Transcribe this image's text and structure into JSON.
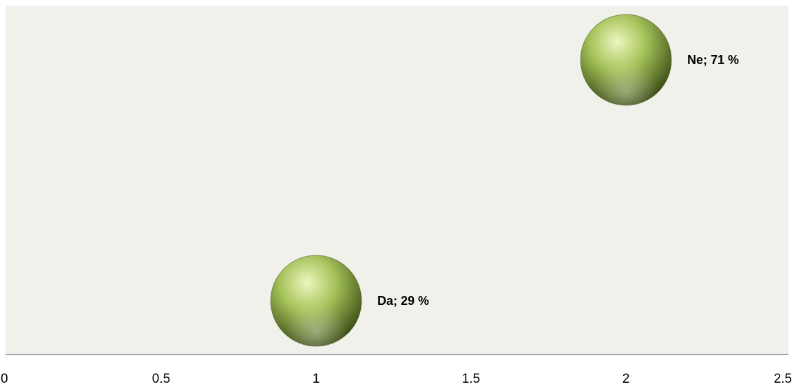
{
  "chart_data": {
    "type": "scatter",
    "title": "",
    "xlabel": "",
    "ylabel": "",
    "xlim": [
      0,
      2.5
    ],
    "xticks": [
      "0",
      "0.5",
      "1",
      "1.5",
      "2",
      "2.5"
    ],
    "ylim": [
      0,
      80
    ],
    "grid": false,
    "legend": "none",
    "colors": {
      "plot_background": "#eff1ea",
      "axis_line": "#8c8c8c",
      "bubble_light": "#eef7c0",
      "bubble_mid": "#a6c35a",
      "bubble_dark": "#3e5016"
    },
    "points": [
      {
        "x": 1,
        "y": 29,
        "label": "Da; 29 %"
      },
      {
        "x": 2,
        "y": 71,
        "label": "Ne; 71 %"
      }
    ]
  }
}
